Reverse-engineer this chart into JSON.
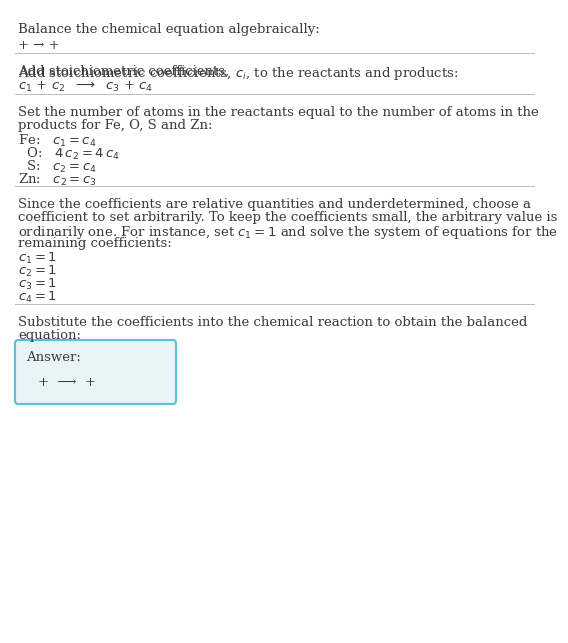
{
  "title": "Balance the chemical equation algebraically:",
  "eq0": "+ → +",
  "section1_intro_a": "Add stoichiometric coefficients, ",
  "section1_ci": "c",
  "section1_intro_b": ", to the reactants and products:",
  "section1_eq": "c₁ + c₂  ⟶  c₃ + c₄",
  "section2_intro_a": "Set the number of atoms in the reactants equal to the number of atoms in the",
  "section2_intro_b": "products for Fe, O, S and Zn:",
  "section2_fe": "Fe:   c₁ = c₄",
  "section2_o": "  O:   4 c₂ = 4 c₄",
  "section2_s": "  S:   c₂ = c₄",
  "section2_zn": "Zn:   c₂ = c₃",
  "section3_intro_a": "Since the coefficients are relative quantities and underdetermined, choose a",
  "section3_intro_b": "coefficient to set arbitrarily. To keep the coefficients small, the arbitrary value is",
  "section3_intro_c": "ordinarily one. For instance, set c₁ = 1 and solve the system of equations for the",
  "section3_intro_d": "remaining coefficients:",
  "section3_c1": "c₁ = 1",
  "section3_c2": "c₂ = 1",
  "section3_c3": "c₃ = 1",
  "section3_c4": "c₄ = 1",
  "section4_intro_a": "Substitute the coefficients into the chemical reaction to obtain the balanced",
  "section4_intro_b": "equation:",
  "answer_label": "Answer:",
  "answer_eq": "+  ⟶  +",
  "bg_color": "#ffffff",
  "text_color": "#3a3a3a",
  "answer_box_bg": "#e8f4f8",
  "answer_box_border": "#5bc0de",
  "sep_color": "#bbbbbb",
  "fs": 9.5
}
